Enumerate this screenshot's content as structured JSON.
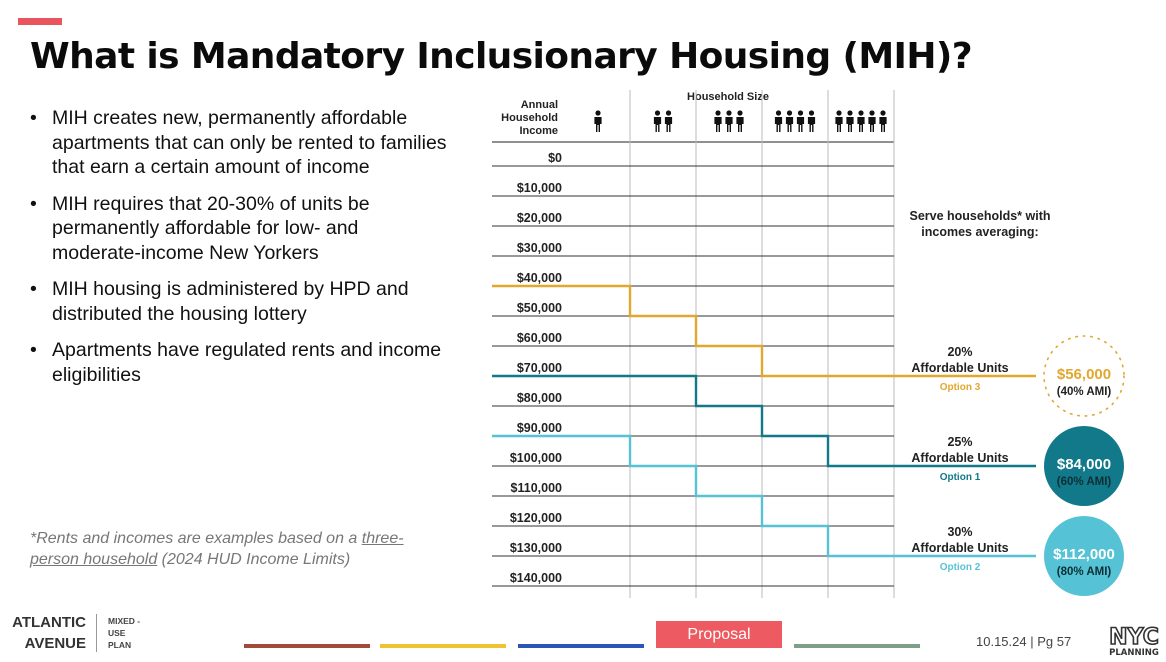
{
  "slide": {
    "title": "What is Mandatory Inclusionary Housing (MIH)?",
    "accent_color": "#e9555d"
  },
  "bullets": [
    "MIH creates new, permanently affordable apartments that can only be rented to families that earn a certain amount of income",
    "MIH requires that 20-30% of units be permanently affordable for low- and moderate-income New Yorkers",
    "MIH housing is administered by HPD and distributed the housing lottery",
    "Apartments have regulated rents and income eligibilities"
  ],
  "footnote": {
    "prefix": "*Rents and incomes are examples based on a ",
    "link": "three-person household",
    "suffix": " (2024 HUD Income Limits)"
  },
  "chart_data": {
    "type": "line",
    "title": "Household Size",
    "ylabel": [
      "Annual",
      "Household",
      "Income"
    ],
    "x_categories_people": [
      1,
      2,
      3,
      4,
      5
    ],
    "y_ticks": [
      "$0",
      "$10,000",
      "$20,000",
      "$30,000",
      "$40,000",
      "$50,000",
      "$60,000",
      "$70,000",
      "$80,000",
      "$90,000",
      "$100,000",
      "$110,000",
      "$120,000",
      "$130,000",
      "$140,000"
    ],
    "ylim": [
      0,
      140000
    ],
    "side_heading": [
      "Serve households* with",
      "incomes averaging:"
    ],
    "series": [
      {
        "name": "Option 3",
        "color": "#e2a72e",
        "values": [
          40000,
          50000,
          60000,
          70000,
          70000
        ],
        "units_label": [
          "20%",
          "Affordable Units"
        ],
        "income": "$56,000",
        "ami": "(40% AMI)"
      },
      {
        "name": "Option 1",
        "color": "#12798a",
        "values": [
          70000,
          70000,
          80000,
          90000,
          100000
        ],
        "units_label": [
          "25%",
          "Affordable Units"
        ],
        "income": "$84,000",
        "ami": "(60% AMI)"
      },
      {
        "name": "Option 2",
        "color": "#55c3d5",
        "values": [
          90000,
          100000,
          110000,
          120000,
          130000
        ],
        "units_label": [
          "30%",
          "Affordable Units"
        ],
        "income": "$112,000",
        "ami": "(80% AMI)"
      }
    ]
  },
  "footer": {
    "brand_lines": [
      "ATLANTIC",
      "AVENUE"
    ],
    "plan_lines": [
      "MIXED -",
      "USE",
      "PLAN"
    ],
    "proposal_label": "Proposal",
    "page_label": "10.15.24 | Pg  57",
    "logo_lines": [
      "NYC",
      "PLANNING"
    ],
    "colors": [
      "#a24b3a",
      "#f0c330",
      "#2a56b7",
      "#ee5a61",
      "#7ea08a"
    ]
  }
}
